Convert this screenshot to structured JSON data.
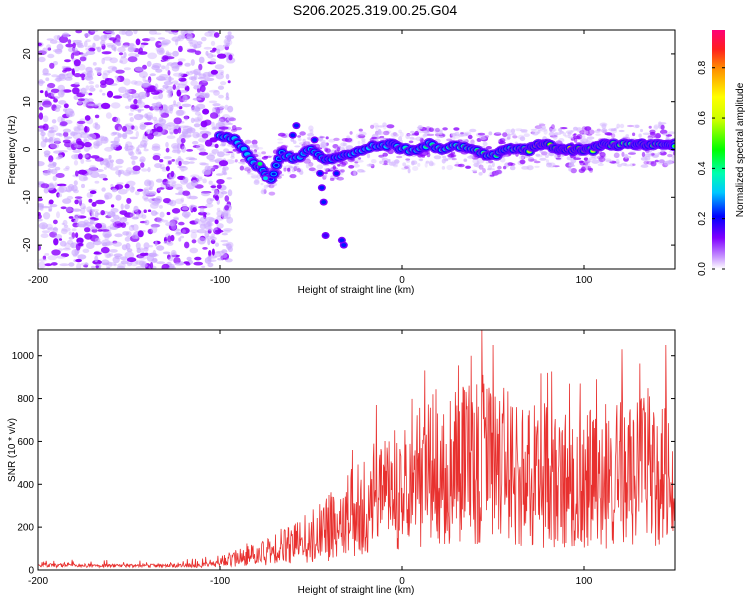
{
  "title": "S206.2025.319.00.25.G04",
  "colors": {
    "snr_line": "#e8302e",
    "frame": "#000000",
    "scatter_points": "#8c00ff"
  },
  "chart_data": [
    {
      "type": "heatmap",
      "xlabel": "Height of straight line (km)",
      "ylabel": "Frequency (Hz)",
      "xlim": [
        -200,
        150
      ],
      "ylim": [
        -25,
        25
      ],
      "xticks": [
        -200,
        -100,
        0,
        100
      ],
      "xtick_labels": [
        "-200",
        "-100",
        "0",
        "100"
      ],
      "yticks": [
        -20,
        -10,
        0,
        10,
        20
      ],
      "ytick_labels": [
        "-20",
        "-10",
        "0",
        "10",
        "20"
      ],
      "colorbar": {
        "label": "Normalized spectral amplitude",
        "range": [
          0,
          0.95
        ],
        "ticks": [
          0,
          0.2,
          0.4,
          0.6,
          0.8
        ],
        "tick_labels": [
          "0.0",
          "0.2",
          "0.4",
          "0.6",
          "0.8"
        ],
        "colormap": "rainbow"
      },
      "noise_region_x": [
        -200,
        -100
      ],
      "ridge": [
        {
          "x": -100,
          "freq": 3,
          "amp": 0.25
        },
        {
          "x": -92,
          "freq": 2,
          "amp": 0.3
        },
        {
          "x": -85,
          "freq": -1,
          "amp": 0.3
        },
        {
          "x": -78,
          "freq": -4,
          "amp": 0.25
        },
        {
          "x": -72,
          "freq": -6,
          "amp": 0.2
        },
        {
          "x": -66,
          "freq": -1,
          "amp": 0.2
        },
        {
          "x": -58,
          "freq": -2,
          "amp": 0.3
        },
        {
          "x": -50,
          "freq": 0,
          "amp": 0.2
        },
        {
          "x": -42,
          "freq": -2,
          "amp": 0.2
        },
        {
          "x": -35,
          "freq": -2,
          "amp": 0.25
        },
        {
          "x": -28,
          "freq": -1,
          "amp": 0.28
        },
        {
          "x": -20,
          "freq": 0,
          "amp": 0.3
        },
        {
          "x": -12,
          "freq": 1,
          "amp": 0.32
        },
        {
          "x": -5,
          "freq": 1,
          "amp": 0.35
        },
        {
          "x": 0,
          "freq": 0,
          "amp": 0.4
        },
        {
          "x": 8,
          "freq": 0,
          "amp": 0.4
        },
        {
          "x": 15,
          "freq": 1,
          "amp": 0.42
        },
        {
          "x": 22,
          "freq": 0,
          "amp": 0.45
        },
        {
          "x": 30,
          "freq": 1,
          "amp": 0.45
        },
        {
          "x": 38,
          "freq": 0,
          "amp": 0.48
        },
        {
          "x": 45,
          "freq": -1,
          "amp": 0.5
        },
        {
          "x": 52,
          "freq": -1,
          "amp": 0.45
        },
        {
          "x": 58,
          "freq": 0,
          "amp": 0.5
        },
        {
          "x": 65,
          "freq": 0,
          "amp": 0.55
        },
        {
          "x": 70,
          "freq": 0,
          "amp": 0.6
        },
        {
          "x": 75,
          "freq": 1,
          "amp": 0.9
        },
        {
          "x": 80,
          "freq": 1,
          "amp": 0.7
        },
        {
          "x": 86,
          "freq": 0,
          "amp": 0.65
        },
        {
          "x": 90,
          "freq": 0,
          "amp": 0.9
        },
        {
          "x": 95,
          "freq": 0,
          "amp": 0.75
        },
        {
          "x": 100,
          "freq": 0,
          "amp": 0.7
        },
        {
          "x": 105,
          "freq": 0,
          "amp": 0.6
        },
        {
          "x": 110,
          "freq": 1,
          "amp": 0.55
        },
        {
          "x": 115,
          "freq": 1,
          "amp": 0.6
        },
        {
          "x": 120,
          "freq": 1,
          "amp": 0.6
        },
        {
          "x": 128,
          "freq": 1,
          "amp": 0.55
        },
        {
          "x": 133,
          "freq": 1,
          "amp": 0.65
        },
        {
          "x": 138,
          "freq": 1,
          "amp": 0.6
        },
        {
          "x": 145,
          "freq": 1,
          "amp": 0.55
        },
        {
          "x": 150,
          "freq": 1,
          "amp": 0.5
        }
      ],
      "side_blobs": [
        {
          "x": -78,
          "freq": -3,
          "amp": 0.3
        },
        {
          "x": -75,
          "freq": -6,
          "amp": 0.2
        },
        {
          "x": -60,
          "freq": 3,
          "amp": 0.1
        },
        {
          "x": -58,
          "freq": 5,
          "amp": 0.1
        },
        {
          "x": -48,
          "freq": 2,
          "amp": 0.1
        },
        {
          "x": -45,
          "freq": -5,
          "amp": 0.1
        },
        {
          "x": -44,
          "freq": -8,
          "amp": 0.1
        },
        {
          "x": -43,
          "freq": -11,
          "amp": 0.1
        },
        {
          "x": -42,
          "freq": -18,
          "amp": 0.05
        },
        {
          "x": -36,
          "freq": -5,
          "amp": 0.1
        },
        {
          "x": -33,
          "freq": -19,
          "amp": 0.1
        },
        {
          "x": -32,
          "freq": -20,
          "amp": 0.1
        }
      ]
    },
    {
      "type": "line",
      "xlabel": "Height of straight line (km)",
      "ylabel": "SNR (10 * v/v)",
      "xlim": [
        -200,
        150
      ],
      "ylim": [
        0,
        1120
      ],
      "xticks": [
        -200,
        -100,
        0,
        100
      ],
      "xtick_labels": [
        "-200",
        "-100",
        "0",
        "100"
      ],
      "yticks": [
        0,
        200,
        400,
        600,
        800,
        1000
      ],
      "ytick_labels": [
        "0",
        "200",
        "400",
        "600",
        "800",
        "1000"
      ],
      "envelope": [
        {
          "x": -200,
          "low": 12,
          "high": 55
        },
        {
          "x": -150,
          "low": 12,
          "high": 45
        },
        {
          "x": -110,
          "low": 12,
          "high": 55
        },
        {
          "x": -95,
          "low": 15,
          "high": 100
        },
        {
          "x": -80,
          "low": 20,
          "high": 160
        },
        {
          "x": -60,
          "low": 30,
          "high": 250
        },
        {
          "x": -40,
          "low": 40,
          "high": 430
        },
        {
          "x": -25,
          "low": 60,
          "high": 620
        },
        {
          "x": -10,
          "low": 80,
          "high": 720
        },
        {
          "x": 5,
          "low": 100,
          "high": 900
        },
        {
          "x": 20,
          "low": 120,
          "high": 1000
        },
        {
          "x": 40,
          "low": 120,
          "high": 1100
        },
        {
          "x": 60,
          "low": 110,
          "high": 1000
        },
        {
          "x": 80,
          "low": 100,
          "high": 950
        },
        {
          "x": 100,
          "low": 100,
          "high": 900
        },
        {
          "x": 120,
          "low": 100,
          "high": 960
        },
        {
          "x": 140,
          "low": 110,
          "high": 1050
        },
        {
          "x": 150,
          "low": 130,
          "high": 780
        }
      ],
      "peaks": [
        {
          "x": -40,
          "y": 350
        },
        {
          "x": -14,
          "y": 770
        },
        {
          "x": -7,
          "y": 600
        },
        {
          "x": 17,
          "y": 820
        },
        {
          "x": 27,
          "y": 610
        },
        {
          "x": 38,
          "y": 1000
        },
        {
          "x": 44,
          "y": 1120
        },
        {
          "x": 50,
          "y": 1050
        },
        {
          "x": 56,
          "y": 850
        },
        {
          "x": 63,
          "y": 760
        },
        {
          "x": 80,
          "y": 920
        },
        {
          "x": 92,
          "y": 870
        },
        {
          "x": 107,
          "y": 890
        },
        {
          "x": 121,
          "y": 1030
        },
        {
          "x": 136,
          "y": 810
        },
        {
          "x": 145,
          "y": 1050
        }
      ]
    }
  ]
}
